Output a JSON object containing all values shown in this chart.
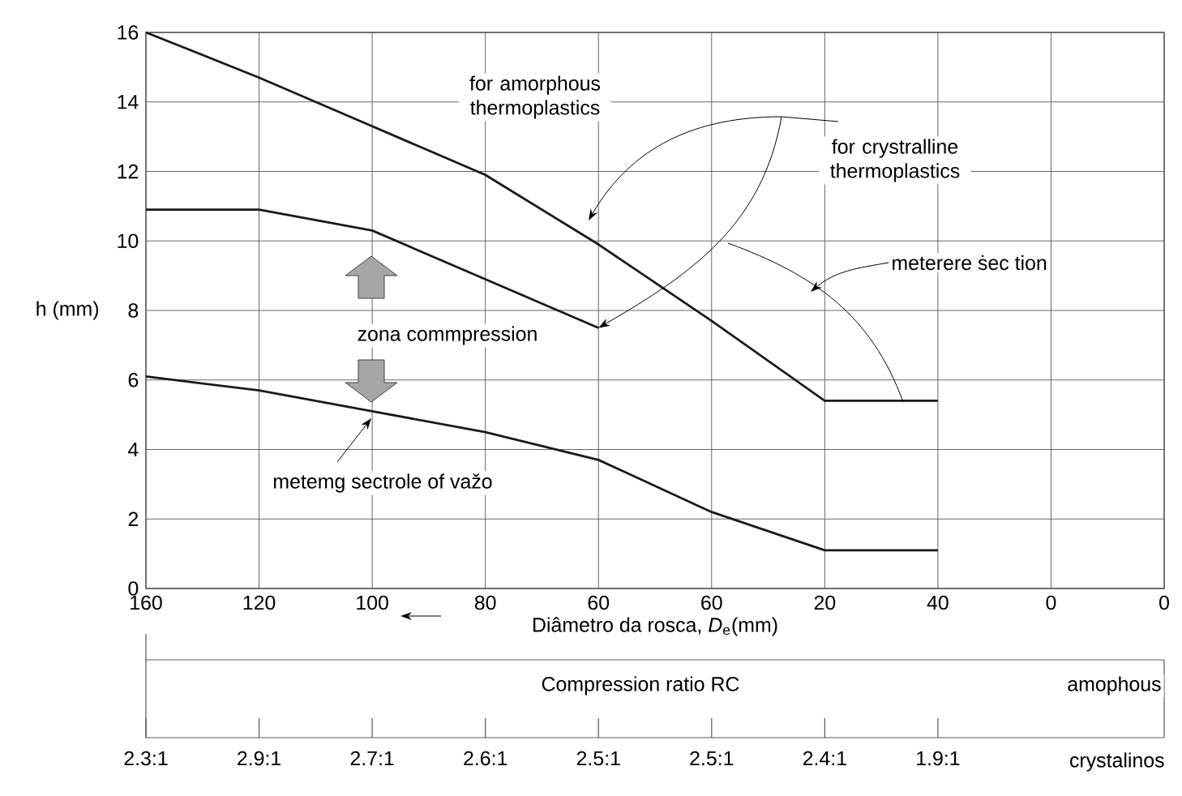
{
  "chart_data": {
    "type": "line",
    "xlabel": "Diâmetro da rosca, *D*$_{e}$(mm)",
    "ylabel": "h (mm)",
    "categories": [
      "160",
      "120",
      "100",
      "80",
      "60",
      "60",
      "20",
      "40",
      "0",
      "0"
    ],
    "ylim": [
      0,
      16
    ],
    "yticks": [
      0,
      2,
      4,
      6,
      8,
      10,
      12,
      14,
      16
    ],
    "grid": true,
    "line_style": "solid",
    "series": [
      {
        "color": "#1a1a1a",
        "values": [
          16,
          14.7,
          13.3,
          11.9,
          9.9,
          7.7,
          5.4,
          5.4,
          null,
          null
        ]
      },
      {
        "color": "#1a1a1a",
        "values": [
          10.9,
          10.9,
          10.3,
          8.9,
          7.5,
          null,
          null,
          null,
          null,
          null
        ]
      },
      {
        "color": "#1a1a1a",
        "values": [
          6.1,
          5.7,
          5.1,
          4.5,
          3.7,
          2.2,
          1.1,
          1.1,
          null,
          null
        ]
      }
    ],
    "annotations": [
      "for amorphous thermoplastics",
      {
        "text": "for crystralline thermoplastics",
        "x": "60",
        "y": 7.5
      },
      "meterere ṡec tion",
      "zona commpression",
      "metemg sectrole of važo",
      "amophous",
      "crystalinos",
      "Compression ratio RC",
      "2.3:1",
      "2.9:1",
      "2.7:1",
      "2.6:1",
      "2.5:1",
      "2.5:1",
      "2.4:1",
      "1.9:1"
    ]
  }
}
